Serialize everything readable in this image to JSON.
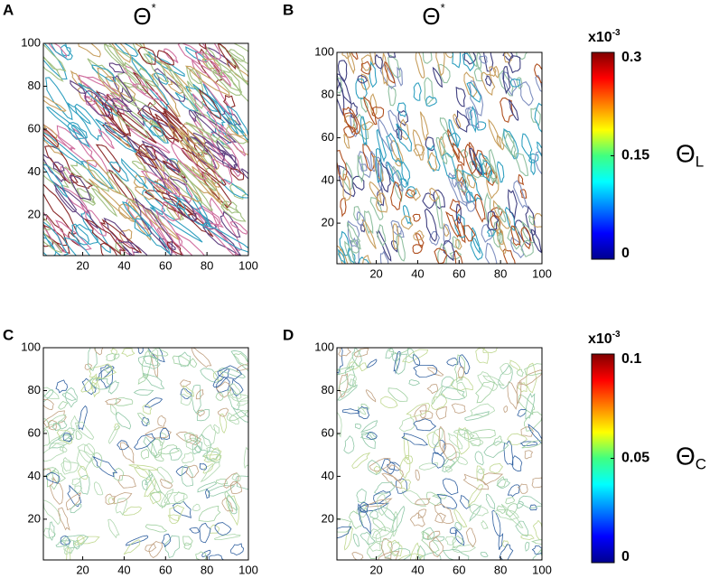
{
  "chart_data": [
    {
      "type": "contour",
      "panel": "A",
      "title": "Θ",
      "title_sup": "*",
      "xlim": [
        1,
        100
      ],
      "ylim": [
        1,
        100
      ],
      "xticks": [
        20,
        40,
        60,
        80,
        100
      ],
      "yticks": [
        20,
        40,
        60,
        80,
        100
      ],
      "pattern": "diagonal"
    },
    {
      "type": "contour",
      "panel": "B",
      "title": "Θ",
      "title_sup": "*",
      "xlim": [
        1,
        100
      ],
      "ylim": [
        1,
        100
      ],
      "xticks": [
        20,
        40,
        60,
        80,
        100
      ],
      "yticks": [
        20,
        40,
        60,
        80,
        100
      ],
      "pattern": "vertical"
    },
    {
      "type": "contour",
      "panel": "C",
      "xlim": [
        1,
        100
      ],
      "ylim": [
        1,
        100
      ],
      "xticks": [
        20,
        40,
        60,
        80,
        100
      ],
      "yticks": [
        20,
        40,
        60,
        80,
        100
      ],
      "pattern": "faint"
    },
    {
      "type": "contour",
      "panel": "D",
      "xlim": [
        1,
        100
      ],
      "ylim": [
        1,
        100
      ],
      "xticks": [
        20,
        40,
        60,
        80,
        100
      ],
      "yticks": [
        20,
        40,
        60,
        80,
        100
      ],
      "pattern": "faint"
    },
    {
      "type": "colorbar",
      "label": "Θ",
      "label_sub": "L",
      "scale_label": "x10",
      "scale_sup": "-3",
      "lim": [
        0,
        0.3
      ],
      "ticks": [
        0,
        0.15,
        0.3
      ],
      "colormap": "jet"
    },
    {
      "type": "colorbar",
      "label": "Θ",
      "label_sub": "C",
      "scale_label": "x10",
      "scale_sup": "-3",
      "lim": [
        0,
        0.1
      ],
      "ticks": [
        0,
        0.05,
        0.1
      ],
      "colormap": "jet"
    }
  ]
}
